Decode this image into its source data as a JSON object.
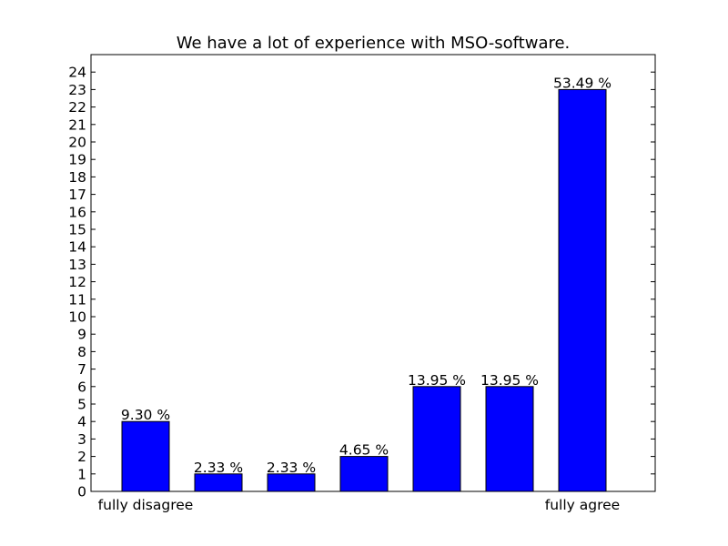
{
  "chart_data": {
    "type": "bar",
    "title": "We have a lot of experience with MSO-software.",
    "xlabel": "",
    "ylabel": "",
    "categories": [
      "fully disagree",
      "",
      "",
      "",
      "",
      "",
      "fully agree"
    ],
    "values": [
      4,
      1,
      1,
      2,
      6,
      6,
      23
    ],
    "data_labels": [
      "9.30 %",
      "2.33 %",
      "2.33 %",
      "4.65 %",
      "13.95 %",
      "13.95 %",
      "53.49 %"
    ],
    "ylim": [
      0,
      25
    ],
    "yticks": [
      0,
      1,
      2,
      3,
      4,
      5,
      6,
      7,
      8,
      9,
      10,
      11,
      12,
      13,
      14,
      15,
      16,
      17,
      18,
      19,
      20,
      21,
      22,
      23,
      24
    ],
    "bar_color": "#0000ff",
    "grid": false,
    "legend": "none"
  }
}
